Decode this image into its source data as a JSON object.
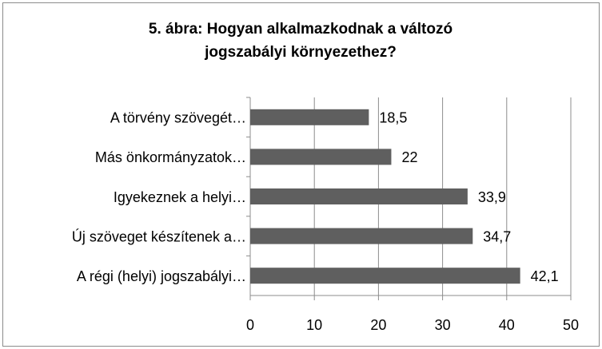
{
  "chart_data": {
    "type": "barh",
    "title": "5. ábra: Hogyan alkalmazkodnak a változó jogszabályi környezethez?",
    "categories": [
      "A törvény szövegét…",
      "Más önkormányzatok…",
      "Igyekeznek a helyi…",
      "Új szöveget készítenek a…",
      "A régi (helyi) jogszabályi…"
    ],
    "values": [
      18.5,
      22,
      33.9,
      34.7,
      42.1
    ],
    "value_labels": [
      "18,5",
      "22",
      "33,9",
      "34,7",
      "42,1"
    ],
    "color": "#5f5f5f",
    "xlim": [
      0,
      50
    ],
    "xticks": [
      0,
      10,
      20,
      30,
      40,
      50
    ],
    "grid": true
  }
}
